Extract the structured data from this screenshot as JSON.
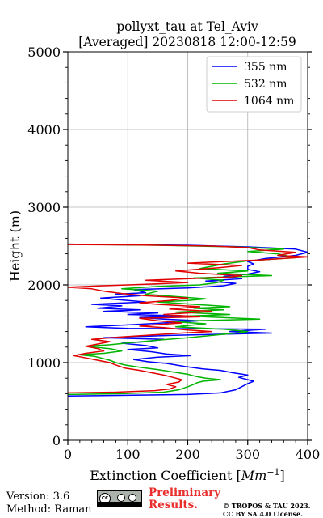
{
  "chart_data": {
    "type": "line",
    "title": "pollyxt_tau at Tel_Aviv",
    "subtitle": "[Averaged] 20230818 12:00-12:59",
    "xlabel": "Extinction Coefficient [",
    "xlabel_unit": "Mm",
    "xlabel_exp": "−1",
    "xlabel_close": "]",
    "ylabel": "Height (m)",
    "xlim": [
      0,
      400
    ],
    "ylim": [
      0,
      5000
    ],
    "xticks": [
      "0",
      "100",
      "200",
      "300",
      "400"
    ],
    "yticks": [
      "0",
      "1000",
      "2000",
      "3000",
      "4000",
      "5000"
    ],
    "grid": true,
    "legend_position": "top-right",
    "series": [
      {
        "name": "355 nm",
        "color": "#0000ff",
        "points": [
          [
            0,
            570
          ],
          [
            110,
            580
          ],
          [
            200,
            590
          ],
          [
            255,
            610
          ],
          [
            280,
            650
          ],
          [
            290,
            690
          ],
          [
            300,
            730
          ],
          [
            310,
            760
          ],
          [
            300,
            780
          ],
          [
            285,
            810
          ],
          [
            300,
            840
          ],
          [
            275,
            870
          ],
          [
            255,
            900
          ],
          [
            225,
            920
          ],
          [
            195,
            950
          ],
          [
            165,
            990
          ],
          [
            135,
            1010
          ],
          [
            110,
            1040
          ],
          [
            150,
            1070
          ],
          [
            205,
            1090
          ],
          [
            165,
            1110
          ],
          [
            140,
            1140
          ],
          [
            100,
            1170
          ],
          [
            150,
            1190
          ],
          [
            130,
            1220
          ],
          [
            90,
            1250
          ],
          [
            130,
            1270
          ],
          [
            160,
            1300
          ],
          [
            60,
            1320
          ],
          [
            170,
            1350
          ],
          [
            340,
            1380
          ],
          [
            270,
            1400
          ],
          [
            330,
            1430
          ],
          [
            100,
            1440
          ],
          [
            30,
            1460
          ],
          [
            110,
            1490
          ],
          [
            180,
            1520
          ],
          [
            220,
            1540
          ],
          [
            160,
            1560
          ],
          [
            120,
            1580
          ],
          [
            200,
            1600
          ],
          [
            100,
            1620
          ],
          [
            150,
            1640
          ],
          [
            60,
            1660
          ],
          [
            120,
            1680
          ],
          [
            50,
            1700
          ],
          [
            90,
            1730
          ],
          [
            40,
            1750
          ],
          [
            130,
            1780
          ],
          [
            100,
            1800
          ],
          [
            55,
            1830
          ],
          [
            120,
            1860
          ],
          [
            80,
            1880
          ],
          [
            130,
            1900
          ],
          [
            110,
            1940
          ],
          [
            200,
            1960
          ],
          [
            260,
            1990
          ],
          [
            280,
            2020
          ],
          [
            230,
            2050
          ],
          [
            290,
            2080
          ],
          [
            260,
            2110
          ],
          [
            300,
            2140
          ],
          [
            320,
            2170
          ],
          [
            300,
            2200
          ],
          [
            300,
            2240
          ],
          [
            310,
            2270
          ],
          [
            300,
            2300
          ],
          [
            330,
            2340
          ],
          [
            380,
            2380
          ],
          [
            400,
            2420
          ],
          [
            380,
            2460
          ],
          [
            300,
            2490
          ],
          [
            200,
            2510
          ],
          [
            60,
            2520
          ],
          [
            0,
            2525
          ]
        ]
      },
      {
        "name": "532 nm",
        "color": "#00b400",
        "points": [
          [
            0,
            590
          ],
          [
            90,
            600
          ],
          [
            160,
            620
          ],
          [
            185,
            650
          ],
          [
            200,
            690
          ],
          [
            210,
            720
          ],
          [
            215,
            740
          ],
          [
            225,
            760
          ],
          [
            255,
            780
          ],
          [
            230,
            800
          ],
          [
            215,
            820
          ],
          [
            200,
            850
          ],
          [
            175,
            880
          ],
          [
            150,
            910
          ],
          [
            120,
            940
          ],
          [
            95,
            970
          ],
          [
            80,
            1000
          ],
          [
            70,
            1030
          ],
          [
            60,
            1050
          ],
          [
            45,
            1080
          ],
          [
            20,
            1100
          ],
          [
            60,
            1120
          ],
          [
            90,
            1150
          ],
          [
            70,
            1180
          ],
          [
            30,
            1210
          ],
          [
            70,
            1230
          ],
          [
            110,
            1260
          ],
          [
            150,
            1290
          ],
          [
            200,
            1320
          ],
          [
            240,
            1350
          ],
          [
            280,
            1380
          ],
          [
            300,
            1400
          ],
          [
            260,
            1430
          ],
          [
            180,
            1460
          ],
          [
            230,
            1500
          ],
          [
            170,
            1530
          ],
          [
            320,
            1560
          ],
          [
            200,
            1600
          ],
          [
            270,
            1620
          ],
          [
            180,
            1650
          ],
          [
            260,
            1680
          ],
          [
            210,
            1700
          ],
          [
            270,
            1720
          ],
          [
            190,
            1760
          ],
          [
            150,
            1780
          ],
          [
            200,
            1800
          ],
          [
            230,
            1820
          ],
          [
            180,
            1850
          ],
          [
            130,
            1880
          ],
          [
            150,
            1920
          ],
          [
            90,
            1950
          ],
          [
            150,
            1980
          ],
          [
            220,
            2000
          ],
          [
            250,
            2030
          ],
          [
            260,
            2060
          ],
          [
            210,
            2090
          ],
          [
            340,
            2120
          ],
          [
            250,
            2150
          ],
          [
            300,
            2180
          ],
          [
            220,
            2210
          ],
          [
            240,
            2240
          ],
          [
            260,
            2270
          ],
          [
            300,
            2310
          ],
          [
            380,
            2350
          ],
          [
            350,
            2400
          ],
          [
            300,
            2430
          ],
          [
            360,
            2460
          ],
          [
            280,
            2490
          ],
          [
            150,
            2510
          ],
          [
            40,
            2520
          ],
          [
            0,
            2525
          ]
        ]
      },
      {
        "name": "1064 nm",
        "color": "#e10000",
        "points": [
          [
            0,
            610
          ],
          [
            80,
            620
          ],
          [
            145,
            640
          ],
          [
            170,
            660
          ],
          [
            180,
            690
          ],
          [
            165,
            720
          ],
          [
            185,
            750
          ],
          [
            190,
            780
          ],
          [
            175,
            810
          ],
          [
            160,
            840
          ],
          [
            140,
            870
          ],
          [
            120,
            900
          ],
          [
            95,
            930
          ],
          [
            80,
            970
          ],
          [
            70,
            1000
          ],
          [
            50,
            1030
          ],
          [
            30,
            1060
          ],
          [
            10,
            1090
          ],
          [
            30,
            1120
          ],
          [
            60,
            1150
          ],
          [
            50,
            1180
          ],
          [
            30,
            1210
          ],
          [
            50,
            1240
          ],
          [
            70,
            1270
          ],
          [
            40,
            1300
          ],
          [
            90,
            1330
          ],
          [
            150,
            1360
          ],
          [
            190,
            1380
          ],
          [
            240,
            1400
          ],
          [
            200,
            1420
          ],
          [
            160,
            1450
          ],
          [
            120,
            1470
          ],
          [
            150,
            1490
          ],
          [
            190,
            1510
          ],
          [
            150,
            1540
          ],
          [
            120,
            1570
          ],
          [
            220,
            1590
          ],
          [
            160,
            1620
          ],
          [
            200,
            1640
          ],
          [
            240,
            1660
          ],
          [
            170,
            1690
          ],
          [
            220,
            1720
          ],
          [
            150,
            1750
          ],
          [
            120,
            1770
          ],
          [
            170,
            1800
          ],
          [
            200,
            1830
          ],
          [
            130,
            1860
          ],
          [
            90,
            1890
          ],
          [
            60,
            1920
          ],
          [
            40,
            1950
          ],
          [
            0,
            1970
          ],
          [
            60,
            1990
          ],
          [
            140,
            2010
          ],
          [
            200,
            2030
          ],
          [
            130,
            2060
          ],
          [
            270,
            2100
          ],
          [
            290,
            2120
          ],
          [
            220,
            2150
          ],
          [
            180,
            2180
          ],
          [
            250,
            2220
          ],
          [
            290,
            2250
          ],
          [
            200,
            2280
          ],
          [
            320,
            2320
          ],
          [
            400,
            2360
          ],
          [
            350,
            2380
          ],
          [
            380,
            2420
          ],
          [
            320,
            2450
          ],
          [
            300,
            2480
          ],
          [
            240,
            2500
          ],
          [
            120,
            2515
          ],
          [
            0,
            2520
          ]
        ]
      }
    ]
  },
  "footer": {
    "version": "Version: 3.6",
    "method": "Method: Raman",
    "preliminary_line1": "Preliminary",
    "preliminary_line2": "Results.",
    "copyright_line1": "© TROPOS & TAU 2023.",
    "copyright_line2": "CC BY SA 4.0 License.",
    "cc_badge": "cc"
  }
}
